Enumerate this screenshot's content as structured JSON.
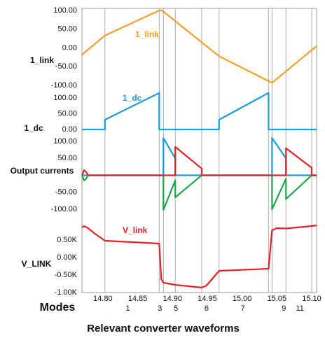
{
  "chart_data": {
    "type": "line",
    "title": "Relevant converter waveforms",
    "xlim": [
      14.77,
      15.107
    ],
    "xticks": [
      {
        "value": 14.8,
        "label": "14.80"
      },
      {
        "value": 14.85,
        "label": "14.85"
      },
      {
        "value": 14.9,
        "label": "14.90"
      },
      {
        "value": 14.95,
        "label": "14.95"
      },
      {
        "value": 15.0,
        "label": "15.00"
      },
      {
        "value": 15.05,
        "label": "15.05"
      },
      {
        "value": 15.1,
        "label": "15.10"
      }
    ],
    "x2label": "Modes",
    "x2ticks": [
      {
        "value": 14.836,
        "label": "1"
      },
      {
        "value": 14.882,
        "label": "3"
      },
      {
        "value": 14.905,
        "label": "5"
      },
      {
        "value": 14.949,
        "label": "6"
      },
      {
        "value": 15.001,
        "label": "7"
      },
      {
        "value": 15.06,
        "label": "9"
      },
      {
        "value": 15.083,
        "label": "11"
      }
    ],
    "mode_lines": [
      14.803,
      14.881,
      14.887,
      14.904,
      14.942,
      14.967,
      15.038,
      15.043,
      15.063,
      15.1
    ],
    "panels": [
      {
        "ylabel": "1_link",
        "ylim": [
          -100,
          100
        ],
        "yticks": [
          {
            "value": 100,
            "label": "100.00"
          },
          {
            "value": 50,
            "label": "50.00"
          },
          {
            "value": 0,
            "label": "0.00"
          },
          {
            "value": -50,
            "label": "-50.00"
          },
          {
            "value": -100,
            "label": "-100.00"
          }
        ],
        "series": [
          {
            "name": "1_link",
            "color": "#f29f2c",
            "x": [
              14.77,
              14.803,
              14.881,
              14.885,
              14.967,
              15.043,
              15.107
            ],
            "values": [
              -18,
              33,
              100,
              100,
              -22,
              -93,
              5
            ]
          }
        ]
      },
      {
        "ylabel": "1_dc",
        "ylim": [
          0,
          120
        ],
        "yticks": [
          {
            "value": 100,
            "label": "100.00"
          },
          {
            "value": 50,
            "label": "50.00"
          },
          {
            "value": 0,
            "label": "0.00"
          }
        ],
        "series": [
          {
            "name": "1_dc",
            "color": "#1b9bd7",
            "x": [
              14.77,
              14.803,
              14.803,
              14.881,
              14.881,
              14.967,
              14.967,
              15.038,
              15.038,
              15.107
            ],
            "values": [
              0,
              0,
              31,
              116,
              0,
              0,
              31,
              116,
              0,
              0
            ]
          }
        ]
      },
      {
        "ylabel": "Output currents",
        "ylim": [
          -120,
          120
        ],
        "yticks": [
          {
            "value": 100,
            "label": "100.00"
          },
          {
            "value": 50,
            "label": "50.00"
          },
          {
            "value": -50,
            "label": "-50.00"
          },
          {
            "value": -100,
            "label": "-100.00"
          }
        ],
        "series": [
          {
            "color": "#1fa64a",
            "x": [
              14.77,
              14.773,
              14.776,
              14.779,
              14.887,
              14.887,
              14.904,
              14.904,
              14.942,
              15.043,
              15.043,
              15.063,
              15.063,
              15.1,
              15.107
            ],
            "values": [
              0,
              -15,
              -10,
              0,
              0,
              -102,
              -15,
              -65,
              0,
              0,
              -100,
              -10,
              -70,
              0,
              0
            ]
          },
          {
            "color": "#1b9bd7",
            "x": [
              14.77,
              14.887,
              14.887,
              14.904,
              14.904,
              15.043,
              15.043,
              15.063,
              15.063,
              15.107
            ],
            "values": [
              0,
              0,
              110,
              50,
              0,
              0,
              110,
              50,
              0,
              0
            ]
          },
          {
            "color": "#e32228",
            "x": [
              14.77,
              14.773,
              14.776,
              14.779,
              14.904,
              14.904,
              14.942,
              14.942,
              15.063,
              15.063,
              15.1,
              15.1,
              15.107
            ],
            "values": [
              0,
              15,
              10,
              0,
              0,
              84,
              20,
              0,
              0,
              80,
              22,
              0,
              0
            ]
          }
        ]
      },
      {
        "ylabel": "V_LINK",
        "ylim": [
          -1000,
          1000
        ],
        "yticks": [
          {
            "value": 500,
            "label": "0.50K"
          },
          {
            "value": 0,
            "label": "0.00K"
          },
          {
            "value": -500,
            "label": "-0.50K"
          },
          {
            "value": -1000,
            "label": "-1.00K"
          }
        ],
        "series": [
          {
            "name": "V_link",
            "color": "#e32228",
            "x": [
              14.77,
              14.773,
              14.778,
              14.788,
              14.803,
              14.881,
              14.884,
              14.887,
              14.904,
              14.942,
              14.949,
              14.967,
              15.038,
              15.043,
              15.05,
              15.063,
              15.1,
              15.107
            ],
            "values": [
              860,
              900,
              850,
              690,
              480,
              400,
              -620,
              -720,
              -780,
              -860,
              -800,
              -380,
              -320,
              780,
              840,
              830,
              900,
              920
            ]
          }
        ]
      }
    ]
  }
}
